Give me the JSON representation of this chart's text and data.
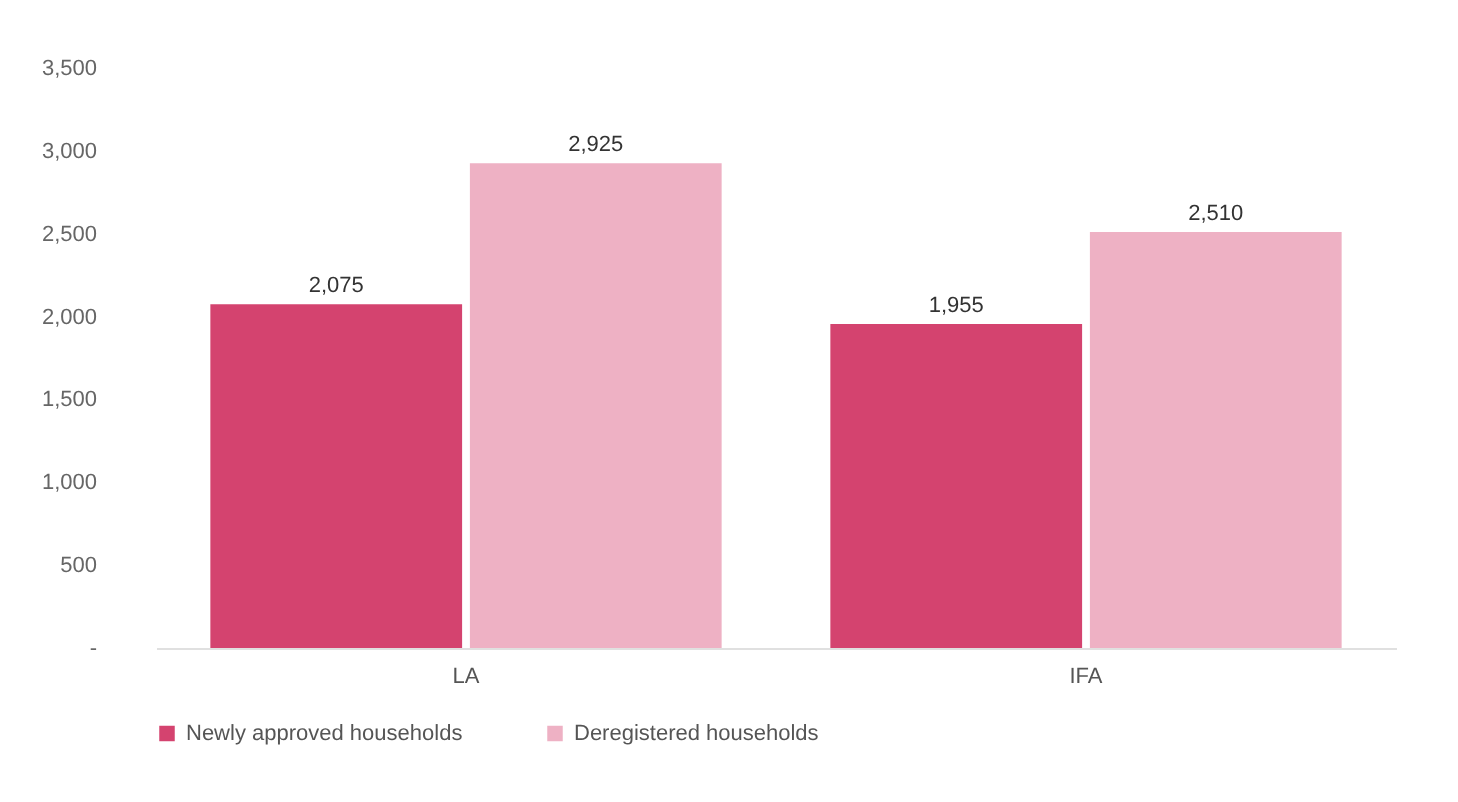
{
  "chart_data": {
    "type": "bar",
    "categories": [
      "LA",
      "IFA"
    ],
    "series": [
      {
        "name": "Newly approved households",
        "color": "#d4436f",
        "values": [
          2075,
          1955
        ],
        "value_labels": [
          "2,075",
          "1,955"
        ]
      },
      {
        "name": "Deregistered households",
        "color": "#eeb1c4",
        "values": [
          2925,
          2510
        ],
        "value_labels": [
          "2,925",
          "2,510"
        ]
      }
    ],
    "ylim": [
      0,
      3500
    ],
    "yticks": [
      {
        "value": 0,
        "label": "-"
      },
      {
        "value": 500,
        "label": "500"
      },
      {
        "value": 1000,
        "label": "1,000"
      },
      {
        "value": 1500,
        "label": "1,500"
      },
      {
        "value": 2000,
        "label": "2,000"
      },
      {
        "value": 2500,
        "label": "2,500"
      },
      {
        "value": 3000,
        "label": "3,000"
      },
      {
        "value": 3500,
        "label": "3,500"
      }
    ],
    "grid": false,
    "legend": "bottom"
  }
}
